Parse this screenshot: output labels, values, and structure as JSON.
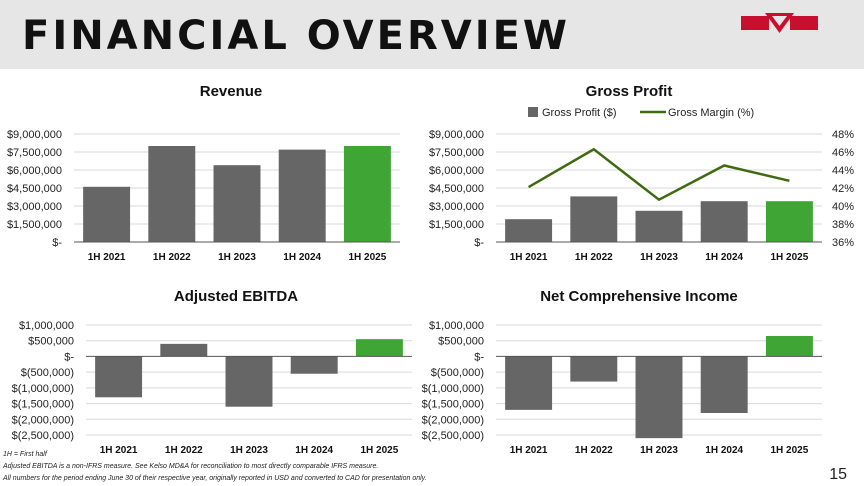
{
  "header": {
    "title": "FINANCIAL OVERVIEW"
  },
  "colors": {
    "bar": "#666666",
    "highlight": "#3fa535",
    "line": "#3e6a10",
    "logo_red": "#c8102e",
    "grid": "#d9d9d9"
  },
  "footnotes": {
    "first_half": "1H = First half",
    "ebitda_note": "Adjusted EBITDA is a non-IFRS measure. See Kelso MD&A for reconciliation to most directly comparable IFRS measure.",
    "currency_note": "All numbers for the period ending June 30 of their respective year, originally reported in USD and converted to CAD for presentation only."
  },
  "page_number": "15",
  "chart_data": [
    {
      "id": "revenue",
      "type": "bar",
      "title": "Revenue",
      "categories": [
        "1H 2021",
        "1H 2022",
        "1H 2023",
        "1H 2024",
        "1H 2025"
      ],
      "values": [
        4600000,
        8000000,
        6400000,
        7700000,
        8000000
      ],
      "highlight_index": 4,
      "ylim": [
        0,
        9000000
      ],
      "yticks": [
        0,
        1500000,
        3000000,
        4500000,
        6000000,
        7500000,
        9000000
      ],
      "ytick_labels": [
        "$-",
        "$1,500,000",
        "$3,000,000",
        "$4,500,000",
        "$6,000,000",
        "$7,500,000",
        "$9,000,000"
      ],
      "grid": true
    },
    {
      "id": "gross-profit",
      "type": "bar",
      "title": "Gross Profit",
      "categories": [
        "1H 2021",
        "1H 2022",
        "1H 2023",
        "1H 2024",
        "1H 2025"
      ],
      "series": [
        {
          "name": "Gross Profit ($)",
          "type": "bar",
          "values": [
            1900000,
            3800000,
            2600000,
            3400000,
            3400000
          ]
        },
        {
          "name": "Gross Margin (%)",
          "type": "line",
          "axis": "right",
          "values": [
            42.1,
            46.3,
            40.7,
            44.5,
            42.8
          ]
        }
      ],
      "highlight_index": 4,
      "ylim": [
        0,
        9000000
      ],
      "yticks": [
        0,
        1500000,
        3000000,
        4500000,
        6000000,
        7500000,
        9000000
      ],
      "ytick_labels": [
        "$-",
        "$1,500,000",
        "$3,000,000",
        "$4,500,000",
        "$6,000,000",
        "$7,500,000",
        "$9,000,000"
      ],
      "y2lim": [
        36,
        48
      ],
      "y2ticks": [
        36,
        38,
        40,
        42,
        44,
        46,
        48
      ],
      "y2tick_labels": [
        "36%",
        "38%",
        "40%",
        "42%",
        "44%",
        "46%",
        "48%"
      ],
      "legend": "top",
      "grid": true
    },
    {
      "id": "adjusted-ebitda",
      "type": "bar",
      "title": "Adjusted EBITDA",
      "categories": [
        "1H 2021",
        "1H 2022",
        "1H 2023",
        "1H 2024",
        "1H 2025"
      ],
      "values": [
        -1300000,
        400000,
        -1600000,
        -550000,
        550000
      ],
      "highlight_index": 4,
      "ylim": [
        -2500000,
        1000000
      ],
      "yticks": [
        -2500000,
        -2000000,
        -1500000,
        -1000000,
        -500000,
        0,
        500000,
        1000000
      ],
      "ytick_labels": [
        "$(2,500,000)",
        "$(2,000,000)",
        "$(1,500,000)",
        "$(1,000,000)",
        "$(500,000)",
        "$-",
        "$500,000",
        "$1,000,000"
      ],
      "grid": true
    },
    {
      "id": "net-comprehensive-income",
      "type": "bar",
      "title": "Net Comprehensive Income",
      "categories": [
        "1H 2021",
        "1H 2022",
        "1H 2023",
        "1H 2024",
        "1H 2025"
      ],
      "values": [
        -1700000,
        -800000,
        -2600000,
        -1800000,
        650000
      ],
      "highlight_index": 4,
      "ylim": [
        -2500000,
        1000000
      ],
      "yticks": [
        -2500000,
        -2000000,
        -1500000,
        -1000000,
        -500000,
        0,
        500000,
        1000000
      ],
      "ytick_labels": [
        "$(2,500,000)",
        "$(2,000,000)",
        "$(1,500,000)",
        "$(1,000,000)",
        "$(500,000)",
        "$-",
        "$500,000",
        "$1,000,000"
      ],
      "grid": true
    }
  ]
}
